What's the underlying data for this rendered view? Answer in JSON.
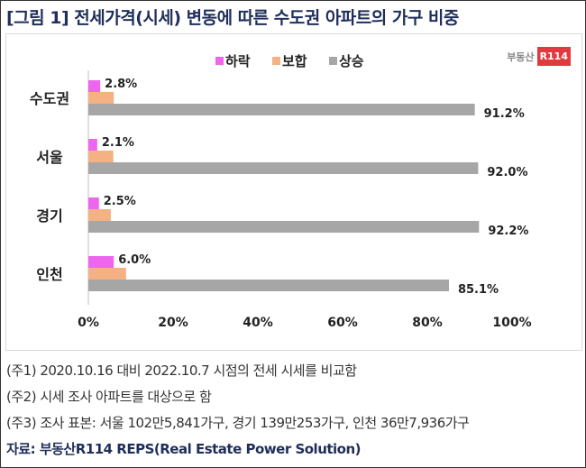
{
  "title": "[그림 1] 전세가격(시세) 변동에 따른 수도권 아파트의 가구 비중",
  "logo": {
    "text": "부동산",
    "mark": "R114"
  },
  "chart_data": {
    "type": "bar",
    "orientation": "horizontal",
    "categories": [
      "수도권",
      "서울",
      "경기",
      "인천"
    ],
    "series": [
      {
        "name": "하락",
        "color": "#ee66ee",
        "values": [
          2.8,
          2.1,
          2.5,
          6.0
        ],
        "labels": [
          "2.8%",
          "2.1%",
          "2.5%",
          "6.0%"
        ]
      },
      {
        "name": "보합",
        "color": "#f4b183",
        "values": [
          6.0,
          5.9,
          5.3,
          8.9
        ],
        "labels": null
      },
      {
        "name": "상승",
        "color": "#a6a6a6",
        "values": [
          91.2,
          92.0,
          92.2,
          85.1
        ],
        "labels": [
          "91.2%",
          "92.0%",
          "92.2%",
          "85.1%"
        ]
      }
    ],
    "xlim": [
      0,
      100
    ],
    "xticks": [
      "0%",
      "20%",
      "40%",
      "60%",
      "80%",
      "100%"
    ],
    "legend": "top-center",
    "grid": false
  },
  "notes": [
    "(주1) 2020.10.16 대비 2022.10.7 시점의 전세 시세를 비교함",
    "(주2) 시세 조사 아파트를 대상으로 함",
    "(주3) 조사 표본: 서울 102만5,841가구, 경기 139만253가구, 인천 36만7,936가구"
  ],
  "source": "자료: 부동산R114 REPS(Real Estate Power Solution)"
}
